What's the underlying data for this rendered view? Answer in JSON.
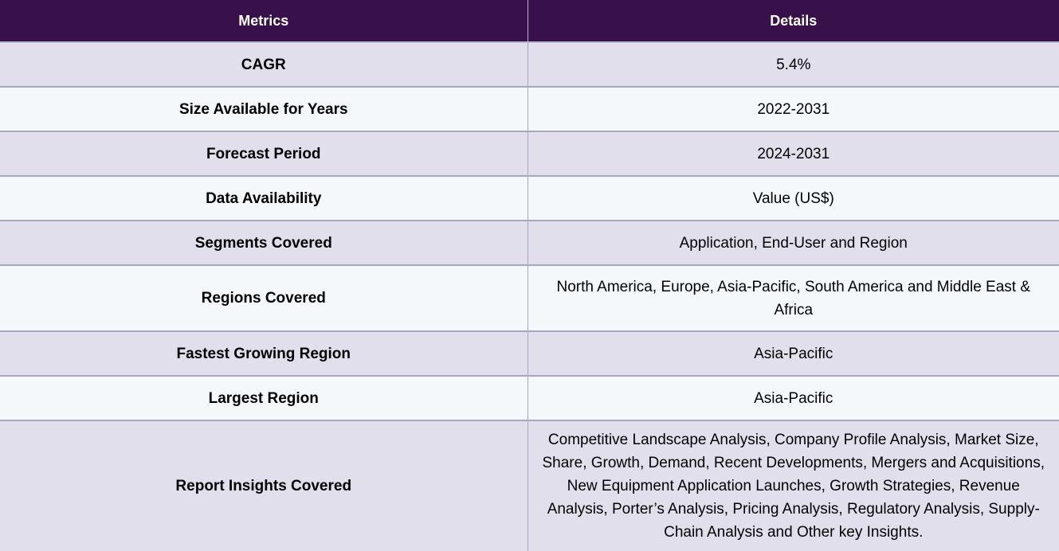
{
  "table": {
    "headers": {
      "metrics": "Metrics",
      "details": "Details"
    },
    "rows": [
      {
        "metric": "CAGR",
        "detail": "5.4%"
      },
      {
        "metric": "Size Available for Years",
        "detail": "2022-2031"
      },
      {
        "metric": "Forecast Period",
        "detail": "2024-2031"
      },
      {
        "metric": "Data Availability",
        "detail": "Value (US$)"
      },
      {
        "metric": "Segments Covered",
        "detail": "Application, End-User and Region"
      },
      {
        "metric": "Regions Covered",
        "detail": "North America, Europe, Asia-Pacific, South America and Middle East & Africa"
      },
      {
        "metric": "Fastest Growing Region",
        "detail": "Asia-Pacific"
      },
      {
        "metric": "Largest Region",
        "detail": "Asia-Pacific"
      },
      {
        "metric": "Report Insights Covered",
        "detail": "Competitive Landscape Analysis, Company Profile Analysis, Market Size, Share, Growth, Demand, Recent Developments, Mergers and Acquisitions, New Equipment Application Launches, Growth Strategies, Revenue Analysis, Porter’s Analysis, Pricing Analysis, Regulatory Analysis, Supply-Chain Analysis and Other key Insights."
      }
    ]
  },
  "colors": {
    "header_bg": "#38104a",
    "row_odd_bg": "#e2dfec",
    "row_even_bg": "#f4f8fb",
    "border": "#a9a6c4"
  }
}
